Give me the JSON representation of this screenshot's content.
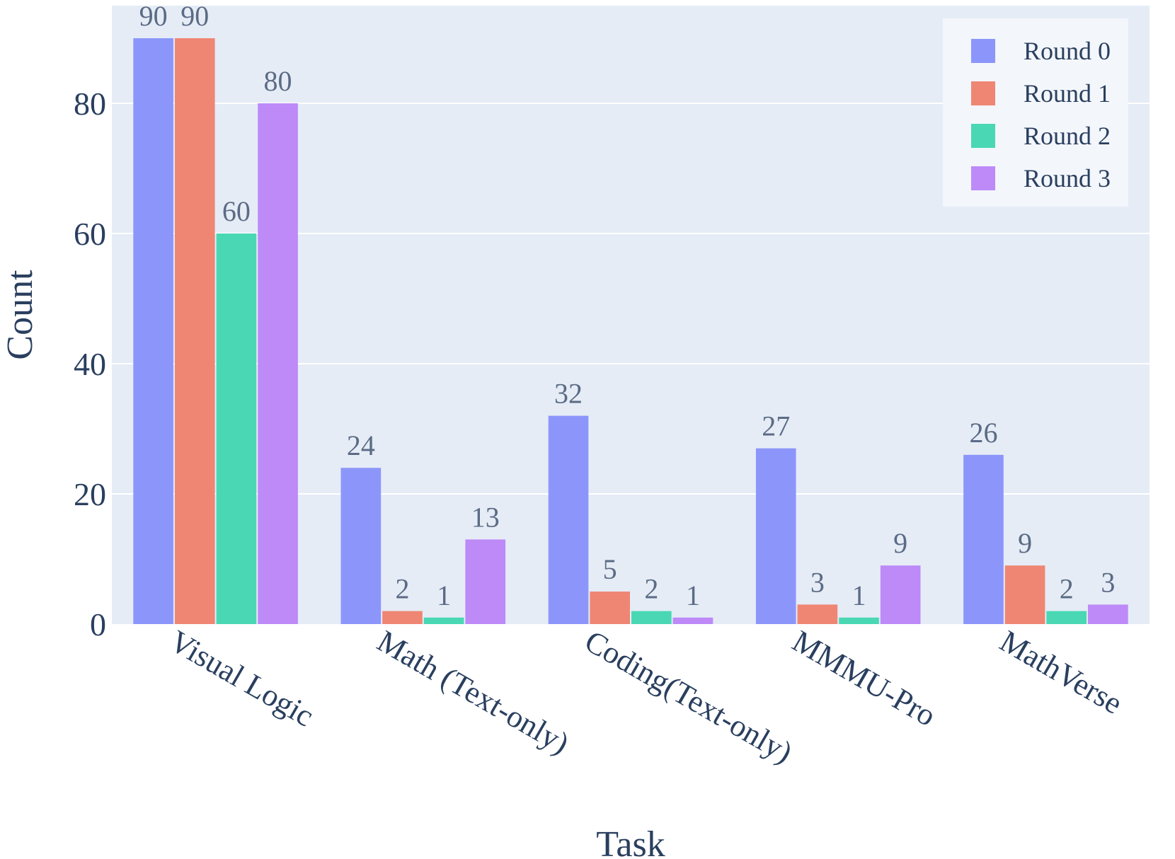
{
  "chart_data": {
    "type": "bar",
    "title": "",
    "xlabel": "Task",
    "ylabel": "Count",
    "ylim": [
      0,
      95
    ],
    "yticks": [
      0,
      20,
      40,
      60,
      80
    ],
    "grid": true,
    "legend_position": "top-right",
    "categories": [
      "Visual Logic",
      "Math (Text-only)",
      "Coding(Text-only)",
      "MMMU-Pro",
      "MathVerse"
    ],
    "series": [
      {
        "name": "Round 0",
        "color": "#8c96fa",
        "values": [
          90,
          24,
          32,
          27,
          26
        ]
      },
      {
        "name": "Round 1",
        "color": "#ef8673",
        "values": [
          90,
          2,
          5,
          3,
          9
        ]
      },
      {
        "name": "Round 2",
        "color": "#49d8b3",
        "values": [
          60,
          1,
          2,
          1,
          2
        ]
      },
      {
        "name": "Round 3",
        "color": "#bd8af8",
        "values": [
          80,
          13,
          1,
          9,
          3
        ]
      }
    ]
  },
  "colors": {
    "plot_background": "#e5ecf6",
    "grid": "#ffffff",
    "text": "#2a3f5f",
    "bar_label": "#5b6b85"
  }
}
